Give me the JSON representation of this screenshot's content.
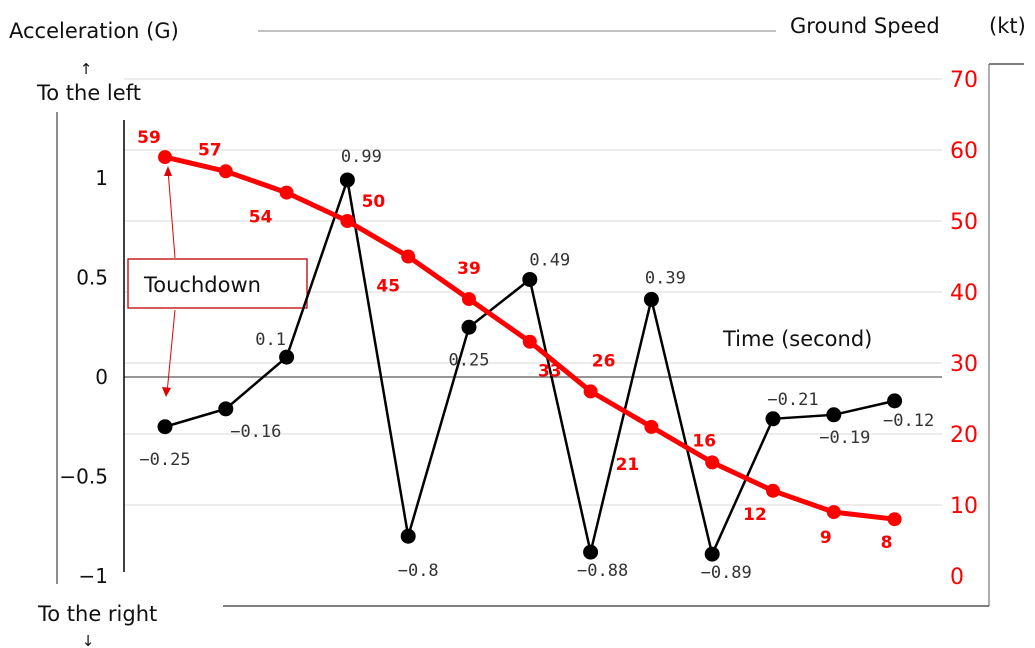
{
  "header": {
    "left_axis_title": "Acceleration (G)",
    "up_arrow": "↑",
    "left_up_label": "To the left",
    "right_axis_title": "Ground Speed",
    "right_axis_unit": "(kt)",
    "left_down_label": "To the right",
    "down_arrow": "↓"
  },
  "annotations": {
    "touchdown": "Touchdown",
    "time_axis": "Time (second)"
  },
  "colors": {
    "acceleration": "#000000",
    "ground_speed": "#ff0000",
    "grid": "#d9d9d9",
    "zero_line": "#595959",
    "touchdown_box": "#c00000"
  },
  "chart_data": {
    "type": "line",
    "x_count": 13,
    "series": [
      {
        "axis": "left",
        "values": [
          -0.25,
          -0.16,
          0.1,
          0.99,
          -0.8,
          0.25,
          0.49,
          -0.88,
          0.39,
          -0.89,
          -0.21,
          -0.19,
          -0.12
        ],
        "labels": [
          "−0.25",
          "−0.16",
          "0.1",
          "0.99",
          "−0.8",
          "0.25",
          "0.49",
          "−0.88",
          "0.39",
          "−0.89",
          "−0.21",
          "−0.19",
          "−0.12"
        ]
      },
      {
        "axis": "right",
        "values": [
          59,
          57,
          54,
          50,
          45,
          39,
          33,
          26,
          21,
          16,
          12,
          9,
          8
        ],
        "labels": [
          "59",
          "57",
          "54",
          "50",
          "45",
          "39",
          "33",
          "26",
          "21",
          "16",
          "12",
          "9",
          "8"
        ]
      }
    ],
    "left_axis": {
      "range": [
        -1,
        1
      ],
      "ticks": [
        1,
        0.5,
        0,
        -0.5,
        -1
      ],
      "tick_labels": [
        "1",
        "0.5",
        "0",
        "−0.5",
        "−1"
      ]
    },
    "right_axis": {
      "range": [
        0,
        70
      ],
      "ticks": [
        70,
        60,
        50,
        40,
        30,
        20,
        10,
        0
      ],
      "tick_labels": [
        "70",
        "60",
        "50",
        "40",
        "30",
        "20",
        "10",
        "0"
      ]
    },
    "grid": true
  }
}
